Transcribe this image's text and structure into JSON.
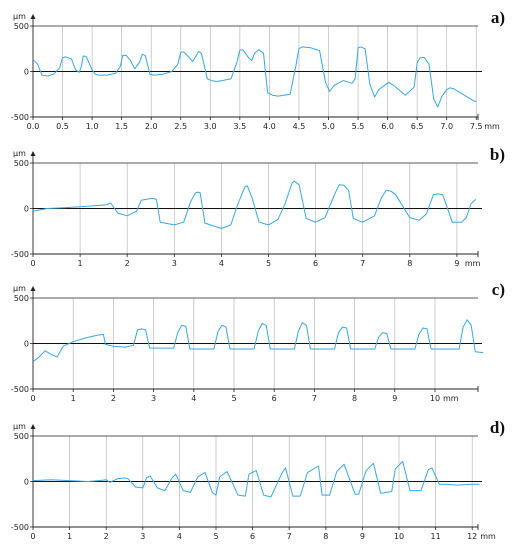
{
  "colors": {
    "trace": "#3aa6e0",
    "grid": "#b9b9b9",
    "axis": "#222222",
    "zero_line": "#111111"
  },
  "chart_data": [
    {
      "type": "line",
      "panel_label": "a)",
      "ylabel": "µm",
      "x_unit": "mm",
      "xlim": [
        0,
        7.5
      ],
      "ylim": [
        -500,
        500
      ],
      "x_tick_labels": [
        "0.0",
        "0.5",
        "1.0",
        "1.5",
        "2.0",
        "2.5",
        "3.0",
        "3.5",
        "4.0",
        "4.5",
        "5.0",
        "5.5",
        "6.0",
        "6.5",
        "7.0",
        "7.5"
      ],
      "y_tick_labels": [
        "500",
        "0",
        "-500"
      ],
      "grid": true,
      "series": [
        {
          "x": [
            0,
            0.08,
            0.15,
            0.25,
            0.35,
            0.45,
            0.5,
            0.55,
            0.65,
            0.72,
            0.78,
            0.82,
            0.85,
            0.9,
            1.0,
            1.05,
            1.1,
            1.25,
            1.4,
            1.48,
            1.52,
            1.58,
            1.65,
            1.72,
            1.8,
            1.85,
            1.9,
            1.98,
            2.05,
            2.12,
            2.2,
            2.35,
            2.45,
            2.5,
            2.55,
            2.65,
            2.7,
            2.75,
            2.8,
            2.85,
            2.95,
            3.02,
            3.1,
            3.2,
            3.35,
            3.45,
            3.5,
            3.55,
            3.65,
            3.7,
            3.75,
            3.82,
            3.9,
            3.97,
            4.05,
            4.15,
            4.35,
            4.45,
            4.5,
            4.55,
            4.7,
            4.85,
            4.95,
            5.02,
            5.1,
            5.25,
            5.4,
            5.45,
            5.5,
            5.55,
            5.62,
            5.7,
            5.78,
            5.85,
            5.95,
            6.02,
            6.1,
            6.3,
            6.45,
            6.5,
            6.55,
            6.62,
            6.7,
            6.78,
            6.85,
            6.92,
            7.0,
            7.05,
            7.12,
            7.3,
            7.45,
            7.5
          ],
          "y": [
            130,
            80,
            -40,
            -50,
            -30,
            40,
            150,
            160,
            140,
            20,
            -10,
            60,
            170,
            165,
            20,
            -30,
            -40,
            -40,
            -20,
            60,
            180,
            175,
            120,
            30,
            100,
            190,
            175,
            -30,
            -40,
            -35,
            -30,
            0,
            80,
            210,
            215,
            150,
            110,
            160,
            220,
            200,
            -80,
            -100,
            -110,
            -100,
            -80,
            100,
            235,
            240,
            150,
            120,
            200,
            240,
            200,
            -230,
            -260,
            -270,
            -250,
            70,
            250,
            270,
            260,
            230,
            -120,
            -220,
            -150,
            -100,
            -130,
            -80,
            260,
            270,
            250,
            -140,
            -280,
            -200,
            -150,
            -120,
            -150,
            -260,
            -170,
            100,
            150,
            155,
            80,
            -300,
            -390,
            -270,
            -200,
            -180,
            -190,
            -260,
            -320,
            -330
          ]
        }
      ]
    },
    {
      "type": "line",
      "panel_label": "b)",
      "ylabel": "µm",
      "x_unit": "mm",
      "xlim": [
        0,
        9.4
      ],
      "ylim": [
        -500,
        500
      ],
      "x_tick_labels": [
        "0",
        "1",
        "2",
        "3",
        "4",
        "5",
        "6",
        "7",
        "8",
        "9"
      ],
      "y_tick_labels": [
        "500",
        "0",
        "-500"
      ],
      "grid": true,
      "series": [
        {
          "x": [
            0,
            0.3,
            0.7,
            1.0,
            1.3,
            1.55,
            1.65,
            1.8,
            2.0,
            2.2,
            2.3,
            2.5,
            2.55,
            2.62,
            2.7,
            3.0,
            3.2,
            3.35,
            3.45,
            3.5,
            3.55,
            3.65,
            4.0,
            4.2,
            4.35,
            4.5,
            4.55,
            4.65,
            4.8,
            5.0,
            5.2,
            5.35,
            5.5,
            5.55,
            5.65,
            5.8,
            6.0,
            6.2,
            6.4,
            6.5,
            6.6,
            6.7,
            6.8,
            7.0,
            7.25,
            7.4,
            7.5,
            7.6,
            7.7,
            8.0,
            8.2,
            8.35,
            8.5,
            8.6,
            8.7,
            8.9,
            9.1,
            9.2,
            9.3,
            9.4
          ],
          "y": [
            -30,
            0,
            10,
            20,
            30,
            40,
            60,
            -50,
            -80,
            -30,
            90,
            110,
            110,
            100,
            -150,
            -180,
            -150,
            80,
            170,
            180,
            170,
            -160,
            -220,
            -180,
            50,
            240,
            250,
            120,
            -150,
            -180,
            -120,
            50,
            280,
            300,
            260,
            -110,
            -150,
            -100,
            150,
            260,
            255,
            200,
            -110,
            -150,
            -80,
            120,
            200,
            190,
            150,
            -100,
            -130,
            -60,
            150,
            160,
            150,
            -150,
            -150,
            -100,
            50,
            100
          ]
        }
      ]
    },
    {
      "type": "line",
      "panel_label": "c)",
      "ylabel": "µm",
      "x_unit": "mm",
      "xlim": [
        0,
        11.2
      ],
      "ylim": [
        -500,
        500
      ],
      "x_tick_labels": [
        "0",
        "1",
        "2",
        "3",
        "4",
        "5",
        "6",
        "7",
        "8",
        "9",
        "10"
      ],
      "y_tick_labels": [
        "500",
        "0",
        "-500"
      ],
      "grid": true,
      "series": [
        {
          "x": [
            0,
            0.15,
            0.3,
            0.45,
            0.6,
            0.75,
            1.0,
            1.3,
            1.6,
            1.75,
            1.8,
            2.0,
            2.3,
            2.5,
            2.6,
            2.7,
            2.8,
            2.9,
            3.3,
            3.5,
            3.6,
            3.7,
            3.8,
            3.9,
            4.3,
            4.5,
            4.6,
            4.7,
            4.8,
            4.9,
            5.3,
            5.5,
            5.6,
            5.7,
            5.8,
            5.9,
            6.3,
            6.5,
            6.6,
            6.7,
            6.8,
            6.9,
            7.3,
            7.5,
            7.6,
            7.7,
            7.8,
            7.9,
            8.3,
            8.5,
            8.6,
            8.7,
            8.8,
            8.9,
            9.3,
            9.5,
            9.6,
            9.7,
            9.8,
            9.9,
            10.3,
            10.6,
            10.7,
            10.8,
            10.9,
            11.0,
            11.2
          ],
          "y": [
            -200,
            -150,
            -80,
            -120,
            -150,
            -30,
            20,
            60,
            90,
            100,
            -10,
            -30,
            -40,
            -20,
            150,
            160,
            150,
            -50,
            -50,
            -50,
            120,
            200,
            190,
            -60,
            -60,
            -60,
            130,
            200,
            180,
            -60,
            -60,
            -60,
            130,
            220,
            200,
            -60,
            -60,
            -60,
            130,
            230,
            200,
            -60,
            -60,
            -60,
            120,
            180,
            170,
            -60,
            -60,
            -60,
            70,
            120,
            110,
            -60,
            -60,
            -60,
            100,
            170,
            160,
            -60,
            -60,
            -60,
            180,
            260,
            200,
            -90,
            -100
          ]
        }
      ]
    },
    {
      "type": "line",
      "panel_label": "d)",
      "ylabel": "µm",
      "x_unit": "mm",
      "xlim": [
        0,
        12.2
      ],
      "ylim": [
        -500,
        500
      ],
      "x_tick_labels": [
        "0",
        "1",
        "2",
        "3",
        "4",
        "5",
        "6",
        "7",
        "8",
        "9",
        "10",
        "11",
        "12"
      ],
      "y_tick_labels": [
        "500",
        "0",
        "-500"
      ],
      "grid": true,
      "series": [
        {
          "x": [
            0,
            0.5,
            1.0,
            1.5,
            1.8,
            2.0,
            2.1,
            2.3,
            2.5,
            2.6,
            2.8,
            3.0,
            3.1,
            3.2,
            3.4,
            3.6,
            3.8,
            3.9,
            4.1,
            4.3,
            4.5,
            4.7,
            4.9,
            5.0,
            5.1,
            5.3,
            5.6,
            5.8,
            5.9,
            6.1,
            6.3,
            6.5,
            6.8,
            6.9,
            7.1,
            7.3,
            7.5,
            7.8,
            7.9,
            8.1,
            8.3,
            8.5,
            8.8,
            8.9,
            9.1,
            9.3,
            9.5,
            9.8,
            9.9,
            10.1,
            10.3,
            10.6,
            10.8,
            10.9,
            11.1,
            11.3,
            11.6,
            12.0,
            12.2
          ],
          "y": [
            10,
            20,
            10,
            0,
            10,
            20,
            -10,
            30,
            40,
            30,
            -60,
            -70,
            40,
            60,
            -70,
            -100,
            40,
            80,
            -100,
            -120,
            50,
            100,
            -120,
            -150,
            50,
            110,
            -150,
            -160,
            80,
            120,
            -150,
            -170,
            90,
            150,
            -160,
            -160,
            100,
            170,
            -150,
            -150,
            110,
            190,
            -140,
            -140,
            120,
            200,
            -130,
            -110,
            140,
            220,
            -100,
            -100,
            130,
            150,
            -30,
            -30,
            -40,
            -30,
            -30
          ]
        }
      ]
    }
  ]
}
